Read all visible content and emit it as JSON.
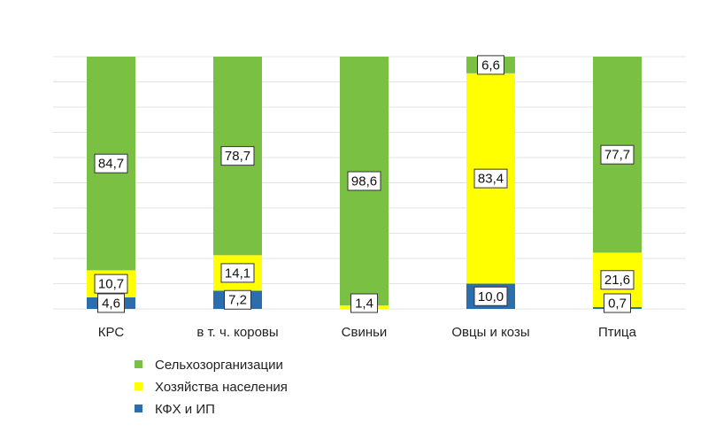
{
  "chart_data": {
    "type": "bar",
    "stacked": true,
    "categories": [
      "КРС",
      "в т. ч. коровы",
      "Свиньи",
      "Овцы и козы",
      "Птица"
    ],
    "series": [
      {
        "name": "КФХ и ИП",
        "values": [
          4.6,
          7.2,
          0,
          10.0,
          0.7
        ],
        "labels": [
          "4,6",
          "7,2",
          "",
          "10,0",
          "0,7"
        ],
        "color": "#2e6dab"
      },
      {
        "name": "Хозяйства населения",
        "values": [
          10.7,
          14.1,
          1.4,
          83.4,
          21.6
        ],
        "labels": [
          "10,7",
          "14,1",
          "1,4",
          "83,4",
          "21,6"
        ],
        "color": "#ffff00"
      },
      {
        "name": "Сельхозорганизации",
        "values": [
          84.7,
          78.7,
          98.6,
          6.6,
          77.7
        ],
        "labels": [
          "84,7",
          "78,7",
          "98,6",
          "6,6",
          "77,7"
        ],
        "color": "#7ac143"
      }
    ],
    "ylim": [
      0,
      100
    ],
    "grid": true,
    "legend": {
      "placement": "bottom-left",
      "entries": [
        "Сельхозорганизации",
        "Хозяйства населения",
        "КФХ и ИП"
      ]
    }
  }
}
